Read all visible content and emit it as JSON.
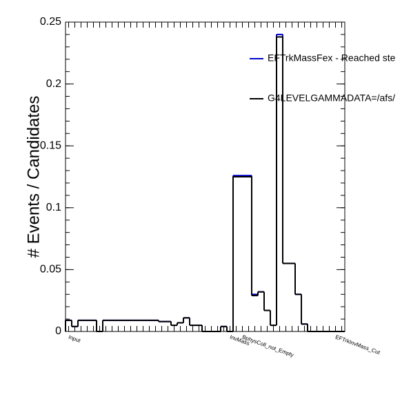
{
  "chart_data": {
    "type": "histogram",
    "ylabel": "# Events / Candidates",
    "categories": [
      "Input",
      null,
      null,
      null,
      null,
      null,
      null,
      null,
      null,
      null,
      null,
      null,
      null,
      null,
      null,
      null,
      null,
      null,
      null,
      null,
      null,
      null,
      null,
      null,
      null,
      null,
      "InvMass",
      null,
      "BphysColl_not_Empty",
      null,
      null,
      null,
      null,
      null,
      null,
      null,
      null,
      null,
      null,
      null,
      null,
      null,
      null,
      "EFTrkInvMass_Cut",
      null
    ],
    "series": [
      {
        "name": "EFTrkMassFex - Reached ste",
        "color": "#0000cc",
        "values": [
          0.009,
          0.004,
          0.009,
          0.009,
          0.009,
          0.0,
          0.009,
          0.009,
          0.009,
          0.009,
          0.009,
          0.009,
          0.009,
          0.009,
          0.009,
          0.008,
          0.008,
          0.005,
          0.007,
          0.011,
          0.005,
          0.005,
          0,
          0,
          0,
          0.004,
          0,
          0.126,
          0.126,
          0.126,
          0.03,
          0.032,
          0.017,
          0.005,
          0.24,
          0.055,
          0.055,
          0.03,
          0.006,
          0,
          0,
          0,
          0,
          0,
          0
        ]
      },
      {
        "name": "G4LEVELGAMMADATA=/afs/",
        "color": "#000000",
        "values": [
          0.009,
          0.004,
          0.009,
          0.009,
          0.009,
          0.0,
          0.009,
          0.009,
          0.009,
          0.009,
          0.009,
          0.009,
          0.009,
          0.009,
          0.009,
          0.008,
          0.008,
          0.005,
          0.007,
          0.011,
          0.005,
          0.005,
          0,
          0,
          0,
          0.004,
          0,
          0.125,
          0.125,
          0.125,
          0.029,
          0.032,
          0.017,
          0.005,
          0.238,
          0.055,
          0.055,
          0.03,
          0.006,
          0,
          0,
          0,
          0,
          0,
          0
        ]
      }
    ],
    "ylim": [
      0,
      0.25
    ],
    "yticks": [
      0,
      0.05,
      0.1,
      0.15,
      0.2,
      0.25
    ]
  }
}
